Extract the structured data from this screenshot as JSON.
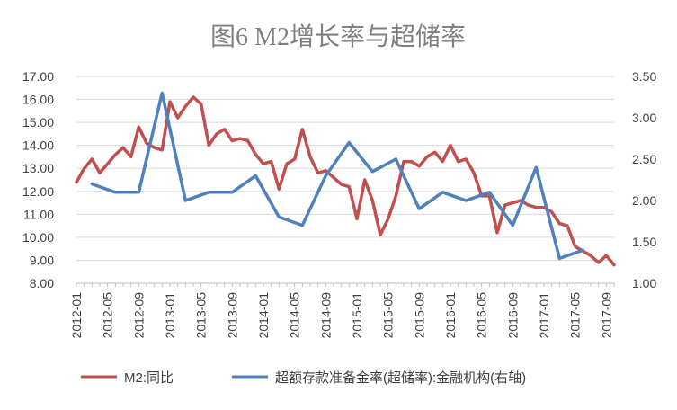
{
  "chart_data": {
    "type": "line",
    "title": "图6 M2增长率与超储率",
    "categories": [
      "2012-01",
      "2012-02",
      "2012-03",
      "2012-04",
      "2012-05",
      "2012-06",
      "2012-07",
      "2012-08",
      "2012-09",
      "2012-10",
      "2012-11",
      "2012-12",
      "2013-01",
      "2013-02",
      "2013-03",
      "2013-04",
      "2013-05",
      "2013-06",
      "2013-07",
      "2013-08",
      "2013-09",
      "2013-10",
      "2013-11",
      "2013-12",
      "2014-01",
      "2014-02",
      "2014-03",
      "2014-04",
      "2014-05",
      "2014-06",
      "2014-07",
      "2014-08",
      "2014-09",
      "2014-10",
      "2014-11",
      "2014-12",
      "2015-01",
      "2015-02",
      "2015-03",
      "2015-04",
      "2015-05",
      "2015-06",
      "2015-07",
      "2015-08",
      "2015-09",
      "2015-10",
      "2015-11",
      "2015-12",
      "2016-01",
      "2016-02",
      "2016-03",
      "2016-04",
      "2016-05",
      "2016-06",
      "2016-07",
      "2016-08",
      "2016-09",
      "2016-10",
      "2016-11",
      "2016-12",
      "2017-01",
      "2017-02",
      "2017-03",
      "2017-04",
      "2017-05",
      "2017-06",
      "2017-07",
      "2017-08",
      "2017-09",
      "2017-10"
    ],
    "x_tick_labels": [
      "2012-01",
      "2012-05",
      "2012-09",
      "2013-01",
      "2013-05",
      "2013-09",
      "2014-01",
      "2014-05",
      "2014-09",
      "2015-01",
      "2015-05",
      "2015-09",
      "2016-01",
      "2016-05",
      "2016-09",
      "2017-01",
      "2017-05",
      "2017-09"
    ],
    "y_left": {
      "ylim": [
        8.0,
        17.0
      ],
      "ticks": [
        "8.00",
        "9.00",
        "10.00",
        "11.00",
        "12.00",
        "13.00",
        "14.00",
        "15.00",
        "16.00",
        "17.00"
      ]
    },
    "y_right": {
      "ylim": [
        1.0,
        3.5
      ],
      "ticks": [
        "1.00",
        "1.50",
        "2.00",
        "2.50",
        "3.00",
        "3.50"
      ]
    },
    "grid": true,
    "legend_position": "bottom",
    "series": [
      {
        "name": "M2:同比",
        "axis": "left",
        "color": "#C0504D",
        "values": [
          12.4,
          13.0,
          13.4,
          12.8,
          13.2,
          13.6,
          13.9,
          13.5,
          14.8,
          14.1,
          13.9,
          13.8,
          15.9,
          15.2,
          15.7,
          16.1,
          15.8,
          14.0,
          14.5,
          14.7,
          14.2,
          14.3,
          14.2,
          13.6,
          13.2,
          13.3,
          12.1,
          13.2,
          13.4,
          14.7,
          13.5,
          12.8,
          12.9,
          12.6,
          12.3,
          12.2,
          10.8,
          12.5,
          11.6,
          10.1,
          10.8,
          11.8,
          13.3,
          13.3,
          13.1,
          13.5,
          13.7,
          13.3,
          14.0,
          13.3,
          13.4,
          12.8,
          11.8,
          11.8,
          10.2,
          11.4,
          11.5,
          11.6,
          11.4,
          11.3,
          11.3,
          11.1,
          10.6,
          10.5,
          9.6,
          9.4,
          9.2,
          8.9,
          9.2,
          8.8
        ]
      },
      {
        "name": "超额存款准备金率(超储率):金融机构(右轴)",
        "axis": "right",
        "color": "#4F81BD",
        "points": [
          [
            "2012-03",
            2.2
          ],
          [
            "2012-06",
            2.1
          ],
          [
            "2012-09",
            2.1
          ],
          [
            "2012-12",
            3.3
          ],
          [
            "2013-03",
            2.0
          ],
          [
            "2013-06",
            2.1
          ],
          [
            "2013-09",
            2.1
          ],
          [
            "2013-12",
            2.3
          ],
          [
            "2014-03",
            1.8
          ],
          [
            "2014-06",
            1.7
          ],
          [
            "2014-09",
            2.3
          ],
          [
            "2014-12",
            2.7
          ],
          [
            "2015-03",
            2.35
          ],
          [
            "2015-06",
            2.5
          ],
          [
            "2015-09",
            1.9
          ],
          [
            "2015-12",
            2.1
          ],
          [
            "2016-03",
            2.0
          ],
          [
            "2016-06",
            2.1
          ],
          [
            "2016-09",
            1.7
          ],
          [
            "2016-12",
            2.4
          ],
          [
            "2017-03",
            1.3
          ],
          [
            "2017-06",
            1.4
          ]
        ]
      }
    ]
  }
}
